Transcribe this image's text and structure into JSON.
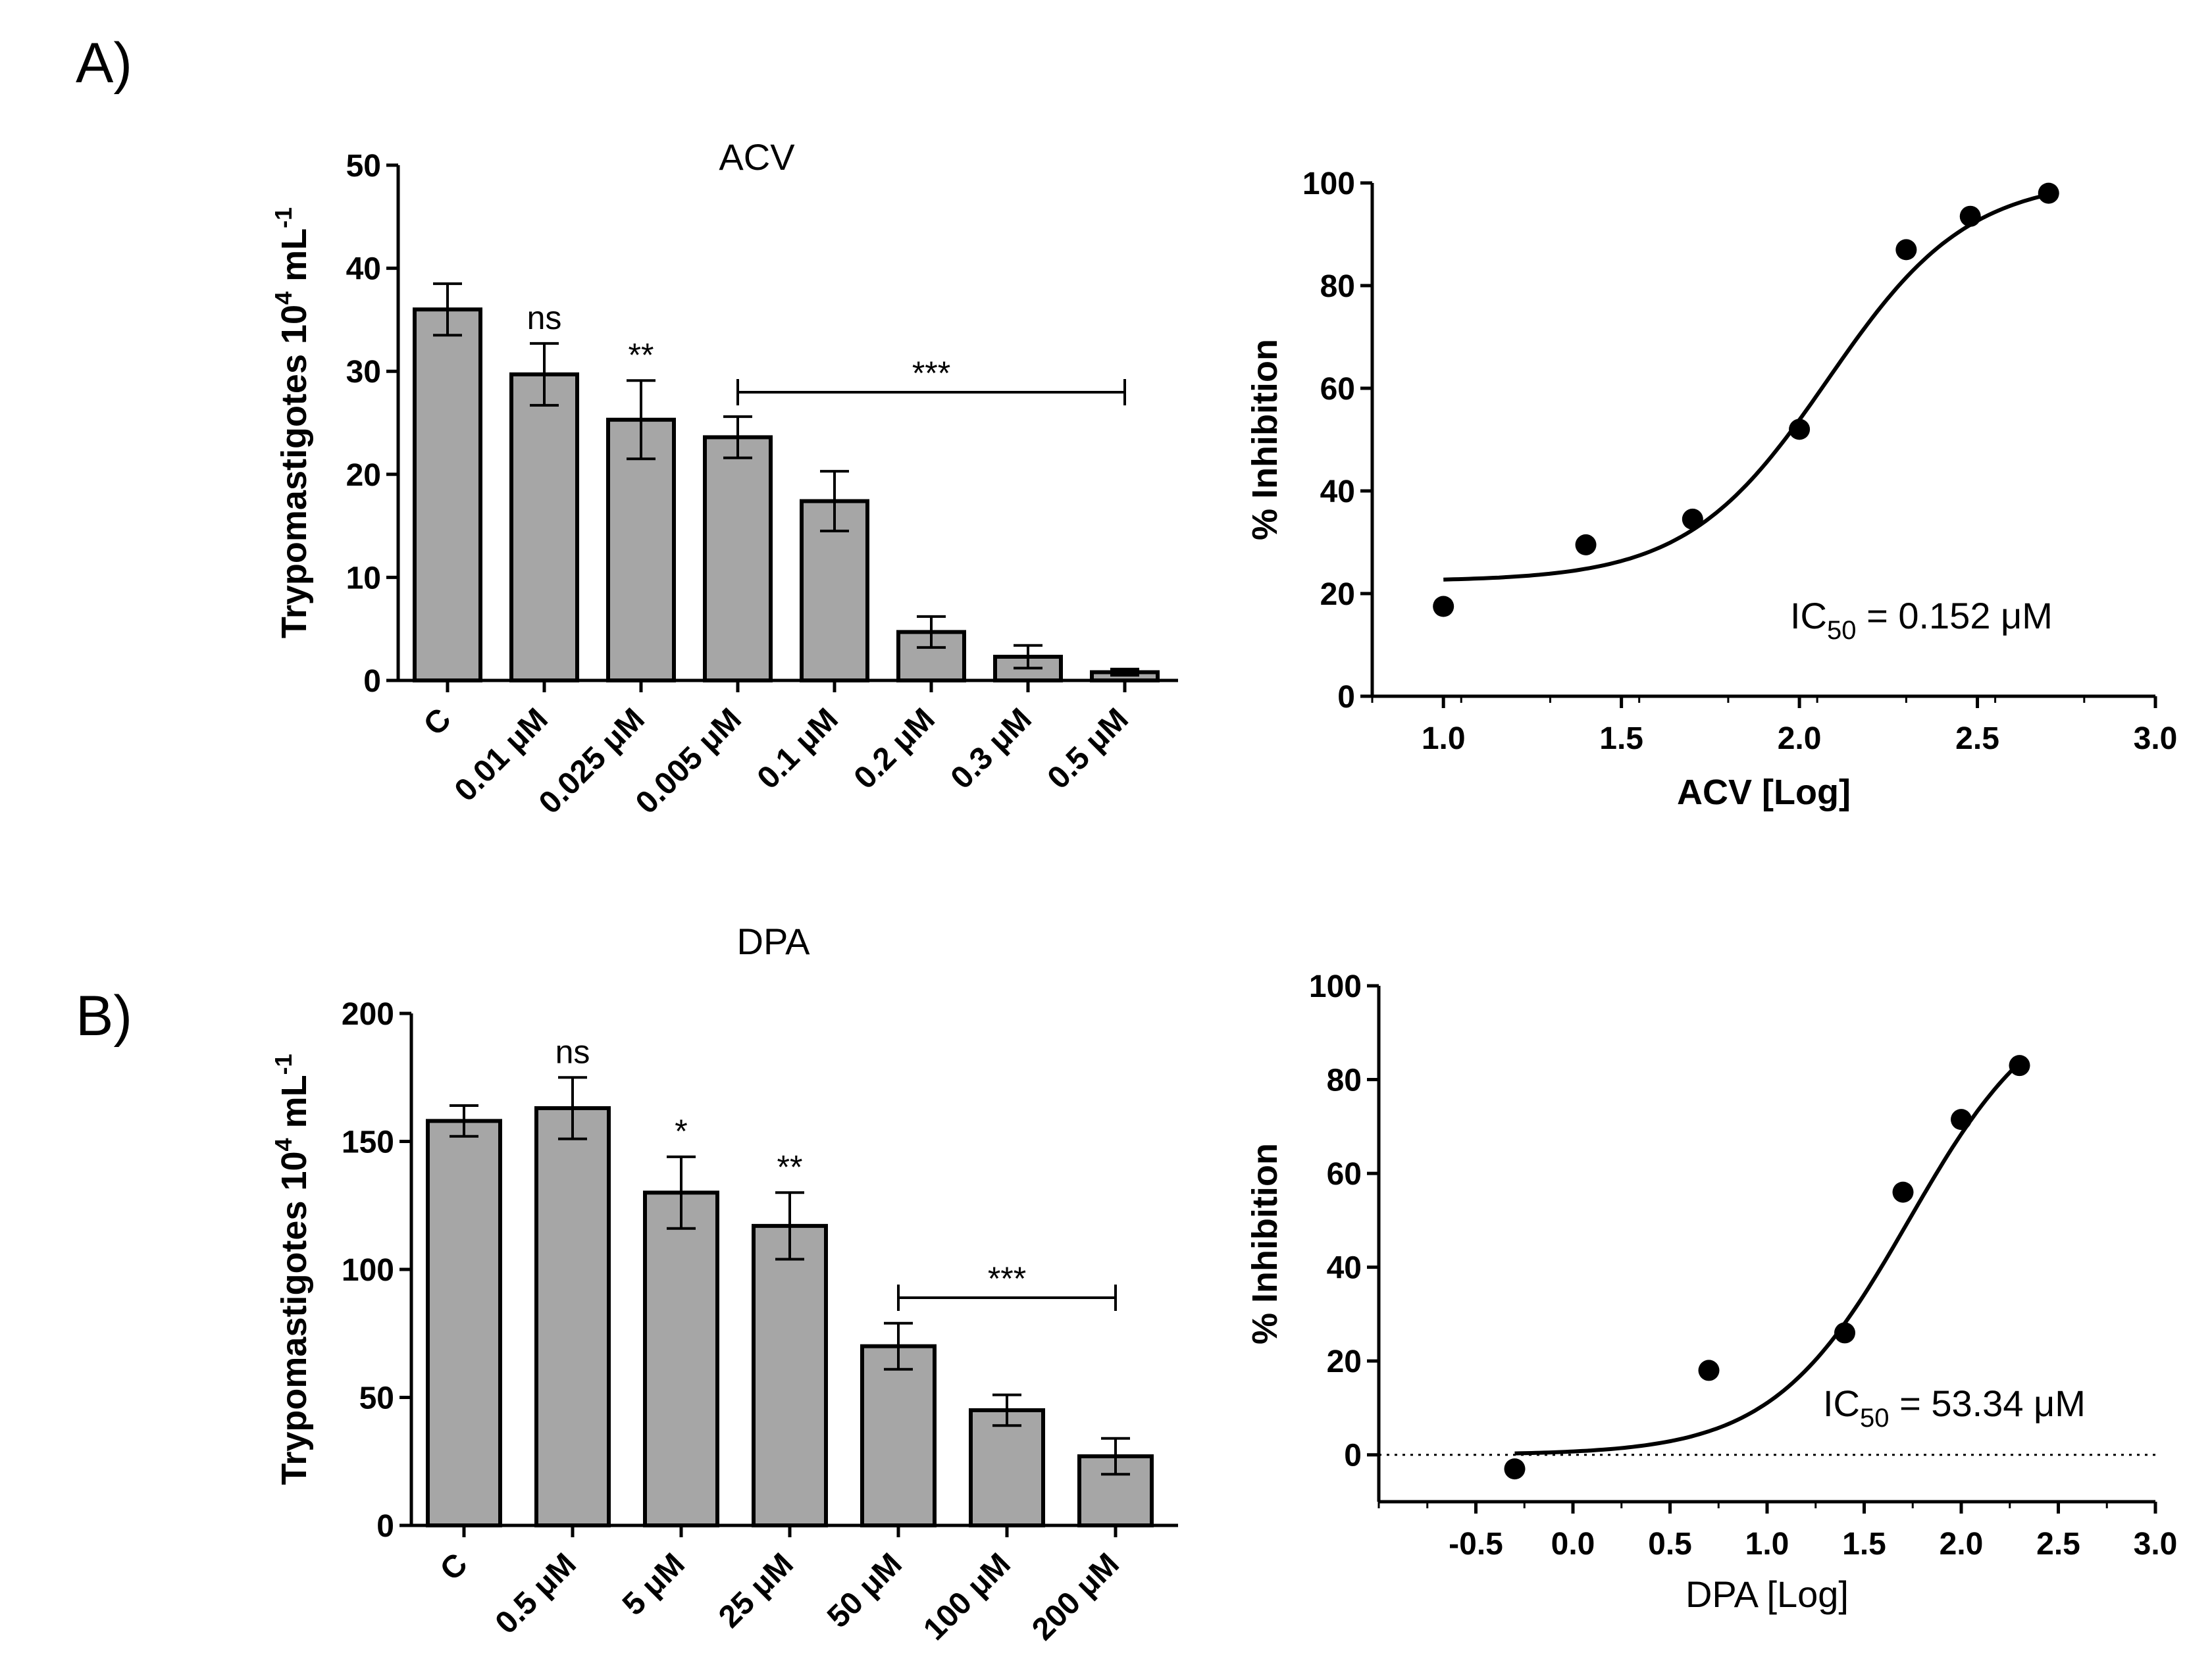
{
  "panels": {
    "a_label": "A)",
    "b_label": "B)"
  },
  "colors": {
    "bar_fill": "#a6a6a6",
    "ink": "#000000"
  },
  "chart_data": [
    {
      "id": "acv_bar",
      "type": "bar",
      "title": "ACV",
      "ylabel": "Trypomastigotes 10",
      "ylabel_sup": "4",
      "ylabel_unit": "mL",
      "ylabel_unit_sup": "-1",
      "categories": [
        "C",
        "0.01 μM",
        "0.025 μM",
        "0.005 μM",
        "0.1 μM",
        "0.2 μM",
        "0.3 μM",
        "0.5 μM"
      ],
      "values": [
        36.0,
        29.7,
        25.3,
        23.6,
        17.4,
        4.7,
        2.3,
        0.8
      ],
      "errors": [
        2.5,
        3.0,
        3.8,
        2.0,
        2.9,
        1.5,
        1.1,
        0.3
      ],
      "ylim": [
        0,
        50
      ],
      "yticks": [
        "0",
        "10",
        "20",
        "30",
        "40",
        "50"
      ],
      "significance": [
        {
          "category": 1,
          "label": "ns"
        },
        {
          "category": 2,
          "label": "**"
        }
      ],
      "bracket": {
        "from_category": 3,
        "to_category": 7,
        "label": "***"
      }
    },
    {
      "id": "acv_curve",
      "type": "scatter",
      "xlabel": "ACV [Log]",
      "ylabel": "% Inhibition",
      "xlim": [
        0.8,
        3.0
      ],
      "ylim": [
        0,
        100
      ],
      "xticks": [
        "1.0",
        "1.5",
        "2.0",
        "2.5",
        "3.0"
      ],
      "yticks": [
        "0",
        "20",
        "40",
        "60",
        "80",
        "100"
      ],
      "x": [
        1.0,
        1.4,
        1.7,
        2.0,
        2.3,
        2.48,
        2.7
      ],
      "y": [
        17.5,
        29.5,
        34.5,
        52.0,
        87.0,
        93.5,
        98.0
      ],
      "fit": {
        "bottom": 22.4,
        "top": 101.0,
        "logIC50": 2.08,
        "hill": 2.2,
        "x_from": 1.0,
        "x_to": 2.7
      },
      "ic50_prefix": "IC",
      "ic50_sub": "50",
      "ic50_value": "= 0.152 μM"
    },
    {
      "id": "dpa_bar",
      "type": "bar",
      "title": "DPA",
      "ylabel": "Trypomastigotes 10",
      "ylabel_sup": "4",
      "ylabel_unit": "mL",
      "ylabel_unit_sup": "-1",
      "categories": [
        "C",
        "0.5 μM",
        "5 μM",
        "25 μM",
        "50 μM",
        "100 μM",
        "200 μM"
      ],
      "values": [
        158,
        163,
        130,
        117,
        70,
        45,
        27
      ],
      "errors": [
        6,
        12,
        14,
        13,
        9,
        6,
        7
      ],
      "ylim": [
        0,
        200
      ],
      "yticks": [
        "0",
        "50",
        "100",
        "150",
        "200"
      ],
      "significance": [
        {
          "category": 1,
          "label": "ns"
        },
        {
          "category": 2,
          "label": "*"
        },
        {
          "category": 3,
          "label": "**"
        }
      ],
      "bracket": {
        "from_category": 4,
        "to_category": 6,
        "label": "***"
      }
    },
    {
      "id": "dpa_curve",
      "type": "scatter",
      "xlabel": "DPA [Log]",
      "ylabel": "% Inhibition",
      "xlim": [
        -1.0,
        3.0
      ],
      "ylim": [
        -10,
        100
      ],
      "xticks": [
        "-0.5",
        "0.0",
        "0.5",
        "1.0",
        "1.5",
        "2.0",
        "2.5",
        "3.0"
      ],
      "yticks": [
        "0",
        "20",
        "40",
        "60",
        "80",
        "100"
      ],
      "x": [
        -0.3,
        0.7,
        1.4,
        1.7,
        2.0,
        2.3
      ],
      "y": [
        -3.0,
        18.0,
        26.0,
        56.0,
        71.5,
        83.0
      ],
      "zero_line": true,
      "fit": {
        "bottom": 0.0,
        "top": 100.0,
        "logIC50": 1.73,
        "hill": 1.24,
        "x_from": -0.3,
        "x_to": 2.3
      },
      "ic50_prefix": "IC",
      "ic50_sub": "50",
      "ic50_value": "= 53.34 μM"
    }
  ]
}
